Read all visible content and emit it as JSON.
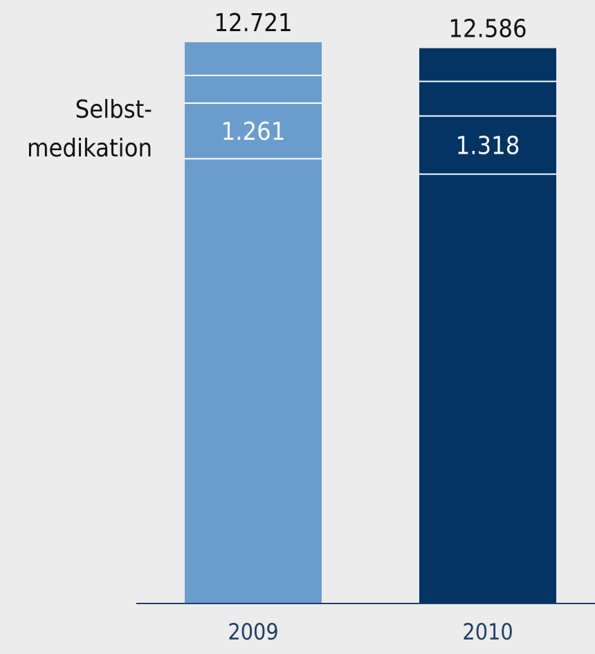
{
  "chart_data": {
    "type": "bar",
    "stacked": true,
    "categories": [
      "2009",
      "2010"
    ],
    "totals": [
      12.721,
      12.586
    ],
    "highlighted_segment": {
      "label_lines": [
        "Selbst-",
        "medikation"
      ],
      "values": [
        1.261,
        1.318
      ],
      "value_labels": [
        "1.261",
        "1.318"
      ]
    },
    "total_labels": [
      "12.721",
      "12.586"
    ],
    "colors": {
      "2009": "#6a9dcd",
      "2010": "#033463",
      "axis": "#1f3f66",
      "tick_label": "#1f3f66",
      "background": "#ececec",
      "divider": "#ffffff"
    },
    "grid": false,
    "legend": "none"
  }
}
